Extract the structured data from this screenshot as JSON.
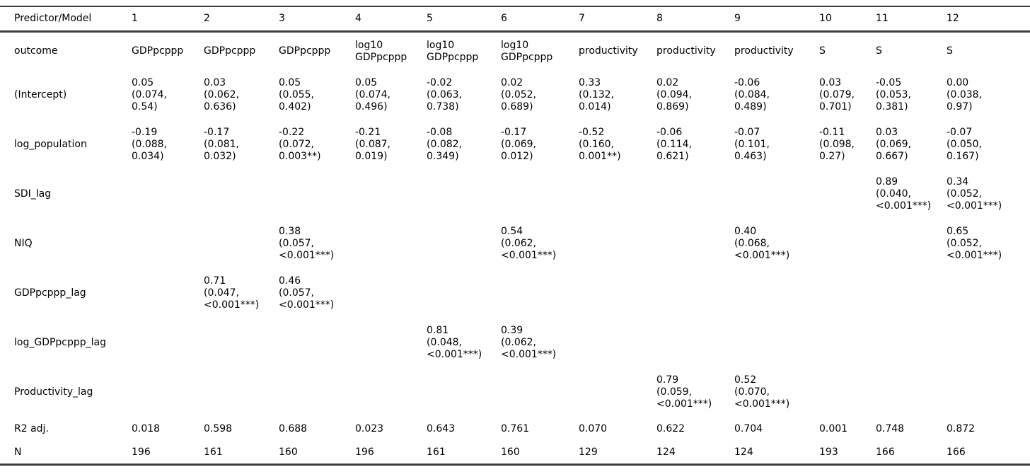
{
  "table": {
    "header": [
      "Predictor/Model",
      "1",
      "2",
      "3",
      "4",
      "5",
      "6",
      "7",
      "8",
      "9",
      "10",
      "11",
      "12"
    ],
    "rows": [
      {
        "kind": "outcome",
        "label": "outcome",
        "cells": [
          "GDPpcppp",
          "GDPpcppp",
          "GDPpcppp",
          "log10\nGDPpcppp",
          "log10\nGDPpcppp",
          "log10\nGDPpcppp",
          "productivity",
          "productivity",
          "productivity",
          "S",
          "S",
          "S"
        ]
      },
      {
        "kind": "block",
        "label": "(Intercept)",
        "cells": [
          "0.05\n(0.074,\n0.54)",
          "0.03\n(0.062,\n0.636)",
          "0.05\n(0.055,\n0.402)",
          "0.05\n(0.074,\n0.496)",
          "-0.02\n(0.063,\n0.738)",
          "0.02\n(0.052,\n0.689)",
          "0.33\n(0.132,\n0.014)",
          "0.02\n(0.094,\n0.869)",
          "-0.06\n(0.084,\n0.489)",
          "0.03\n(0.079,\n0.701)",
          "-0.05\n(0.053,\n0.381)",
          "0.00\n(0.038,\n0.97)"
        ]
      },
      {
        "kind": "block",
        "label": "log_population",
        "cells": [
          "-0.19\n(0.088,\n0.034)",
          "-0.17\n(0.081,\n0.032)",
          "-0.22\n(0.072,\n0.003**)",
          "-0.21\n(0.087,\n0.019)",
          "-0.08\n(0.082,\n0.349)",
          "-0.17\n(0.069,\n0.012)",
          "-0.52\n(0.160,\n0.001**)",
          "-0.06\n(0.114,\n0.621)",
          "-0.07\n(0.101,\n0.463)",
          "-0.11\n(0.098,\n0.27)",
          "0.03\n(0.069,\n0.667)",
          "-0.07\n(0.050,\n0.167)"
        ]
      },
      {
        "kind": "block",
        "label": "SDI_lag",
        "cells": [
          "",
          "",
          "",
          "",
          "",
          "",
          "",
          "",
          "",
          "",
          "0.89\n(0.040,\n<0.001***)",
          "0.34\n(0.052,\n<0.001***)"
        ]
      },
      {
        "kind": "block",
        "label": "NIQ",
        "cells": [
          "",
          "",
          "0.38\n(0.057,\n<0.001***)",
          "",
          "",
          "0.54\n(0.062,\n<0.001***)",
          "",
          "",
          "0.40\n(0.068,\n<0.001***)",
          "",
          "",
          "0.65\n(0.052,\n<0.001***)"
        ]
      },
      {
        "kind": "block",
        "label": "GDPpcppp_lag",
        "cells": [
          "",
          "0.71\n(0.047,\n<0.001***)",
          "0.46\n(0.057,\n<0.001***)",
          "",
          "",
          "",
          "",
          "",
          "",
          "",
          "",
          ""
        ]
      },
      {
        "kind": "block",
        "label": "log_GDPpcppp_lag",
        "cells": [
          "",
          "",
          "",
          "",
          "0.81\n(0.048,\n<0.001***)",
          "0.39\n(0.062,\n<0.001***)",
          "",
          "",
          "",
          "",
          "",
          ""
        ]
      },
      {
        "kind": "block",
        "label": "Productivity_lag",
        "cells": [
          "",
          "",
          "",
          "",
          "",
          "",
          "",
          "0.79\n(0.059,\n<0.001***)",
          "0.52\n(0.070,\n<0.001***)",
          "",
          "",
          ""
        ]
      },
      {
        "kind": "stat",
        "label": "R2 adj.",
        "cells": [
          "0.018",
          "0.598",
          "0.688",
          "0.023",
          "0.643",
          "0.761",
          "0.070",
          "0.622",
          "0.704",
          "0.001",
          "0.748",
          "0.872"
        ]
      },
      {
        "kind": "n",
        "label": "N",
        "cells": [
          "196",
          "161",
          "160",
          "196",
          "161",
          "160",
          "129",
          "124",
          "124",
          "193",
          "166",
          "166"
        ]
      }
    ]
  }
}
